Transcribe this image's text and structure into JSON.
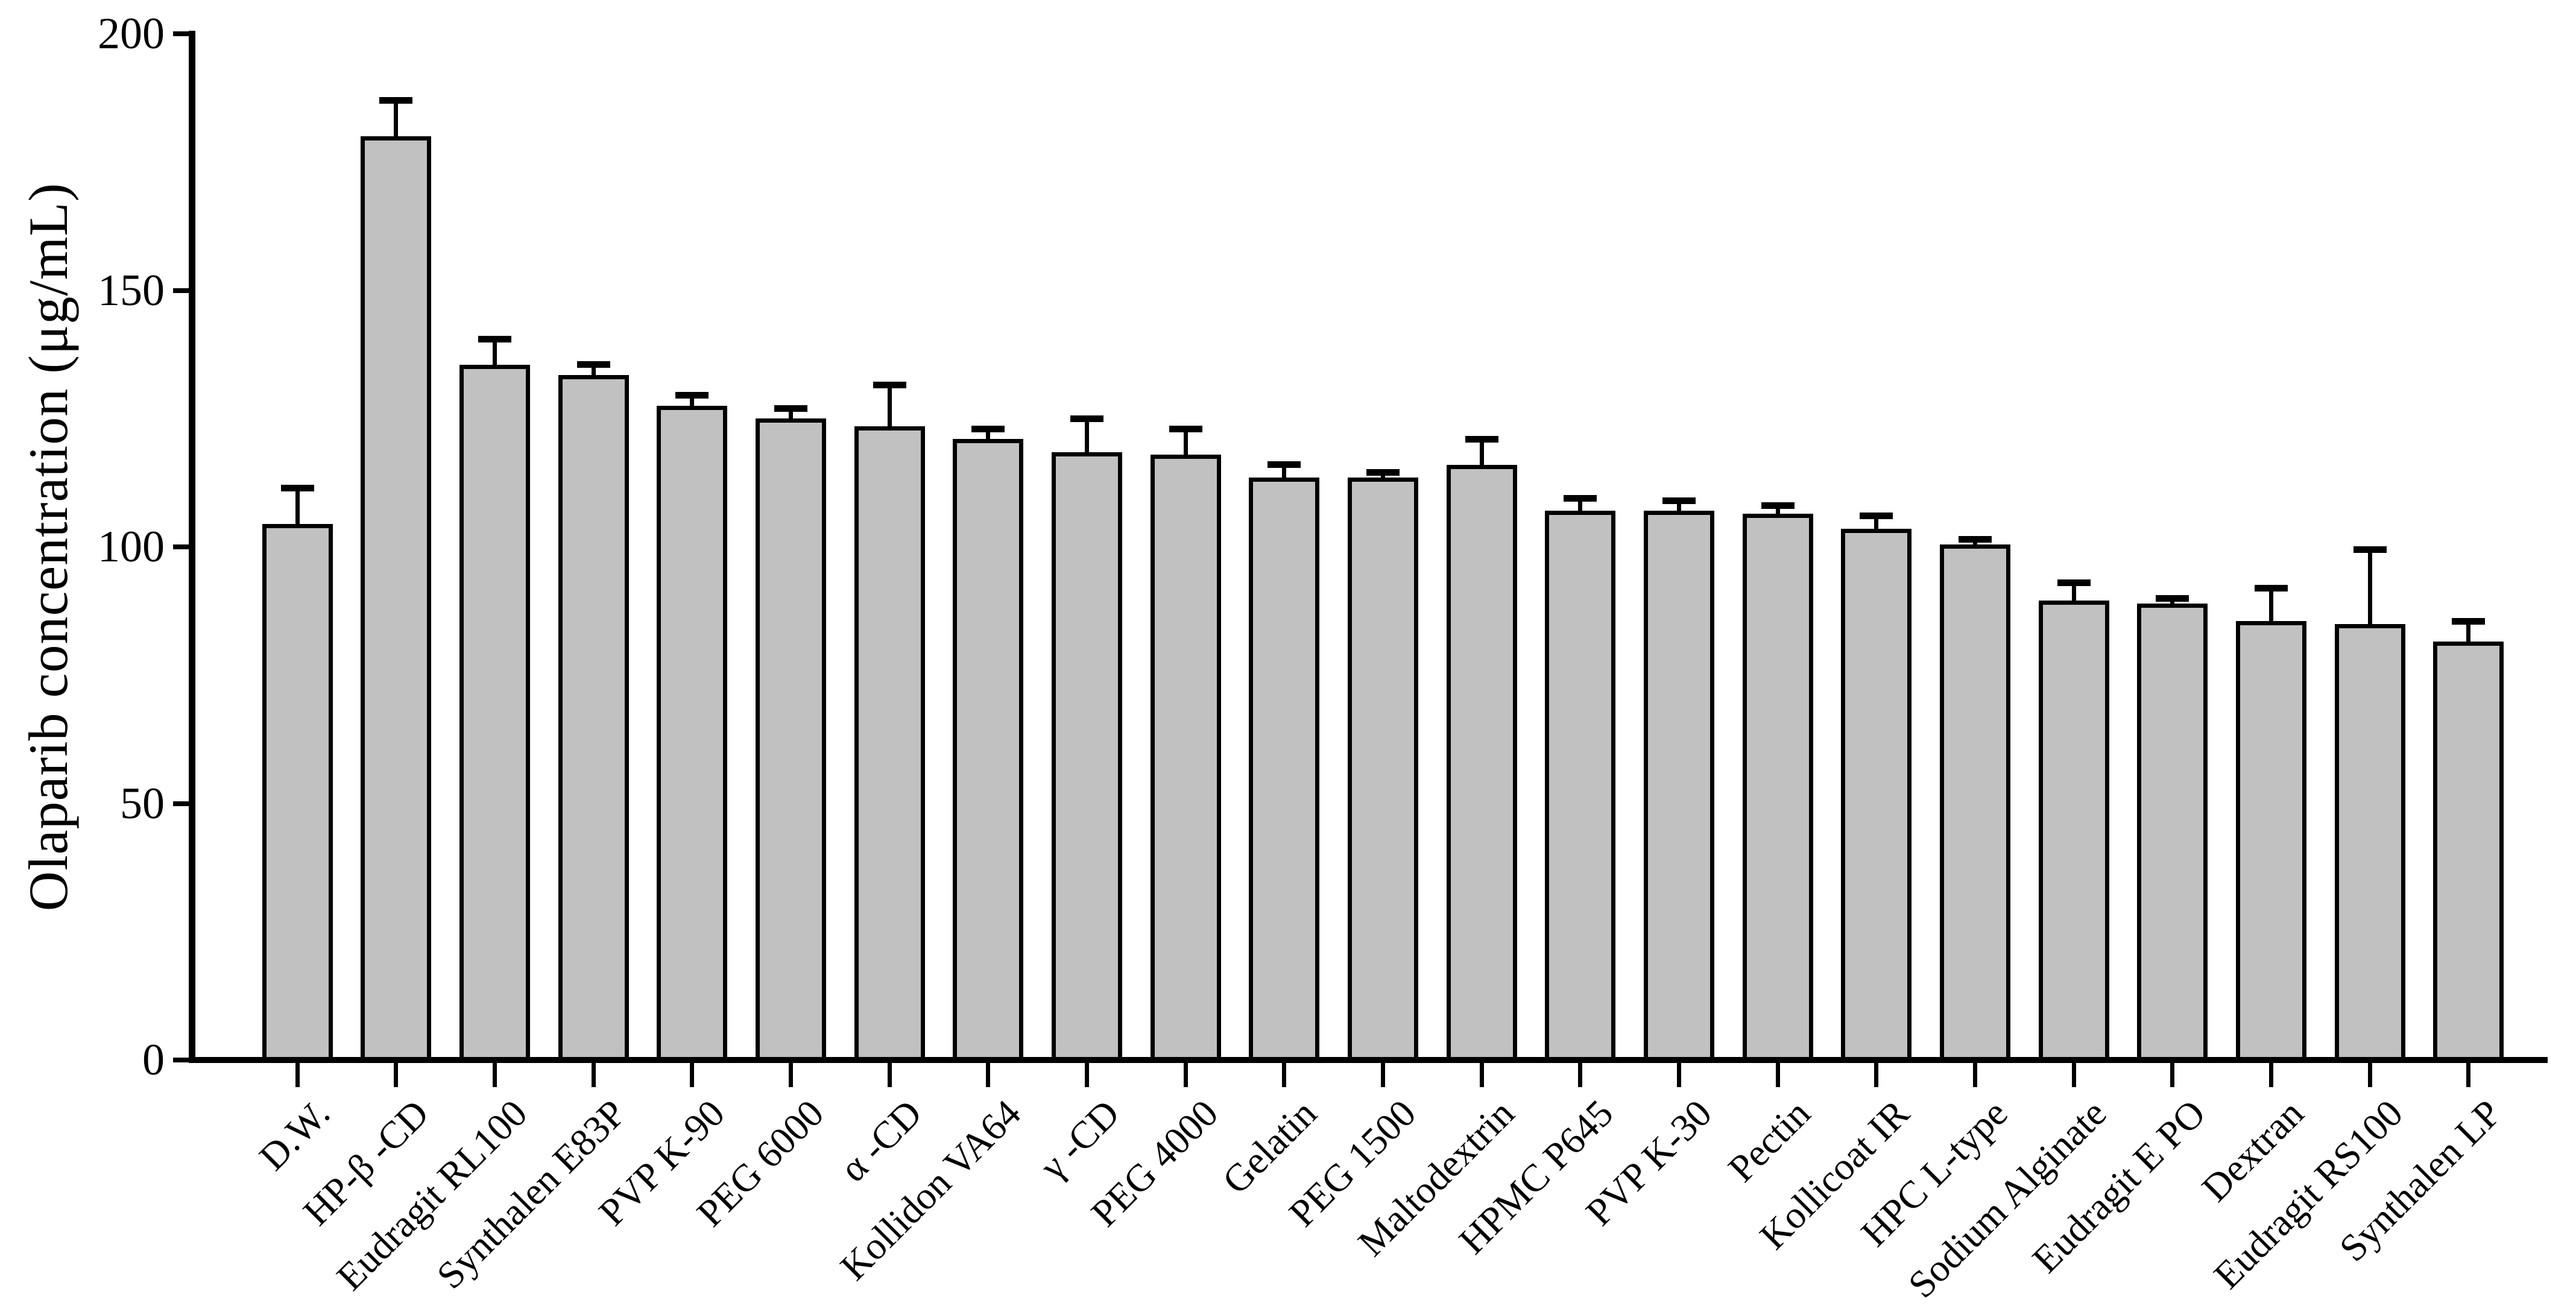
{
  "figure": {
    "background": "#ffffff",
    "text_color": "#000000"
  },
  "chart_data": {
    "type": "bar",
    "title": "",
    "xlabel": "",
    "ylabel": "Olaparib concentration (μg/mL)",
    "ylim": [
      0,
      200
    ],
    "yticks": [
      0,
      50,
      100,
      150,
      200
    ],
    "grid": false,
    "legend": "none",
    "bar_color": "#c1c1c1",
    "bar_border_color": "#000000",
    "error_bar_style": "upper only, T-cap",
    "x_tick_label_rotation_deg": 45,
    "categories": [
      "D.W.",
      "HP-β -CD",
      "Eudragit RL100",
      "Synthalen E83P",
      "PVP K-90",
      "PEG 6000",
      "α -CD",
      "Kollidon VA64",
      "γ -CD",
      "PEG 4000",
      "Gelatin",
      "PEG 1500",
      "Maltodextrin",
      "HPMC P645",
      "PVP K-30",
      "Pectin",
      "Kollicoat IR",
      "HPC L-type",
      "Sodium Alginate",
      "Eudragit E PO",
      "Dextran",
      "Eudragit RS100",
      "Synthalen LP"
    ],
    "values": [
      104.5,
      180,
      135.5,
      133.5,
      127.5,
      125,
      123.5,
      121,
      118.5,
      118,
      113.5,
      113.5,
      116,
      107,
      107,
      106.5,
      103.5,
      100.5,
      89.5,
      89,
      85.5,
      85,
      81.5
    ],
    "errors": [
      7,
      7,
      5,
      2,
      2,
      2,
      8,
      2,
      6.5,
      5,
      2.5,
      1,
      5,
      2.5,
      2,
      1.5,
      2.5,
      1,
      3.5,
      1,
      6.5,
      14.5,
      4
    ]
  }
}
